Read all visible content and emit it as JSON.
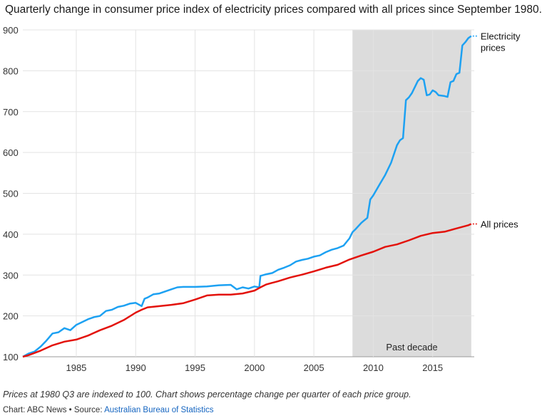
{
  "title": "Quarterly change in consumer price index of electricity prices compared with all prices since September 1980.",
  "footnote": "Prices at 1980 Q3 are indexed to 100. Chart shows percentage change per quarter of each price group.",
  "credit": {
    "prefix": "Chart: ABC News • Source: ",
    "source": "Australian Bureau of Statistics"
  },
  "chart_data": {
    "type": "line",
    "title": "Quarterly change in consumer price index of electricity prices compared with all prices since September 1980.",
    "xlim": [
      1980.5,
      2018.5
    ],
    "ylim": [
      100,
      900
    ],
    "x_ticks": [
      1985,
      1990,
      1995,
      2000,
      2005,
      2010,
      2015
    ],
    "y_ticks": [
      100,
      200,
      300,
      400,
      500,
      600,
      700,
      800,
      900
    ],
    "grid": true,
    "legend": "inline labels at line ends",
    "shaded_region": {
      "from": 2008.25,
      "to": 2018.25,
      "label": "Past decade",
      "color": "#dcdcdc"
    },
    "series": [
      {
        "name": "Electricity prices",
        "label_lines": [
          "Electricity",
          "prices"
        ],
        "color": "#1da1f2",
        "points": [
          [
            1980.5,
            100
          ],
          [
            1981,
            108
          ],
          [
            1981.5,
            113
          ],
          [
            1982,
            125
          ],
          [
            1982.5,
            140
          ],
          [
            1983,
            157
          ],
          [
            1983.5,
            160
          ],
          [
            1984,
            170
          ],
          [
            1984.5,
            165
          ],
          [
            1985,
            178
          ],
          [
            1985.5,
            185
          ],
          [
            1986,
            192
          ],
          [
            1986.5,
            197
          ],
          [
            1987,
            200
          ],
          [
            1987.5,
            212
          ],
          [
            1988,
            215
          ],
          [
            1988.5,
            222
          ],
          [
            1989,
            225
          ],
          [
            1989.5,
            230
          ],
          [
            1990,
            232
          ],
          [
            1990.5,
            224
          ],
          [
            1990.75,
            242
          ],
          [
            1991,
            245
          ],
          [
            1991.5,
            253
          ],
          [
            1992,
            255
          ],
          [
            1992.5,
            260
          ],
          [
            1993,
            265
          ],
          [
            1993.5,
            270
          ],
          [
            1994,
            271
          ],
          [
            1995,
            271
          ],
          [
            1996,
            272
          ],
          [
            1997,
            275
          ],
          [
            1998,
            276
          ],
          [
            1998.5,
            265
          ],
          [
            1999,
            270
          ],
          [
            1999.5,
            267
          ],
          [
            2000,
            272
          ],
          [
            2000.4,
            270
          ],
          [
            2000.5,
            298
          ],
          [
            2001,
            302
          ],
          [
            2001.5,
            305
          ],
          [
            2002,
            313
          ],
          [
            2002.5,
            318
          ],
          [
            2003,
            324
          ],
          [
            2003.5,
            333
          ],
          [
            2004,
            337
          ],
          [
            2004.5,
            340
          ],
          [
            2005,
            345
          ],
          [
            2005.5,
            348
          ],
          [
            2006,
            356
          ],
          [
            2006.5,
            362
          ],
          [
            2007,
            366
          ],
          [
            2007.5,
            372
          ],
          [
            2008,
            390
          ],
          [
            2008.25,
            405
          ],
          [
            2008.5,
            412
          ],
          [
            2009,
            428
          ],
          [
            2009.5,
            440
          ],
          [
            2009.75,
            485
          ],
          [
            2010,
            495
          ],
          [
            2010.5,
            520
          ],
          [
            2011,
            545
          ],
          [
            2011.5,
            575
          ],
          [
            2012,
            618
          ],
          [
            2012.25,
            630
          ],
          [
            2012.5,
            635
          ],
          [
            2012.75,
            728
          ],
          [
            2013,
            735
          ],
          [
            2013.25,
            745
          ],
          [
            2013.5,
            760
          ],
          [
            2013.75,
            775
          ],
          [
            2014,
            782
          ],
          [
            2014.25,
            778
          ],
          [
            2014.5,
            740
          ],
          [
            2014.75,
            742
          ],
          [
            2015,
            752
          ],
          [
            2015.25,
            748
          ],
          [
            2015.5,
            740
          ],
          [
            2016,
            738
          ],
          [
            2016.25,
            736
          ],
          [
            2016.5,
            772
          ],
          [
            2016.75,
            775
          ],
          [
            2017,
            792
          ],
          [
            2017.25,
            795
          ],
          [
            2017.5,
            862
          ],
          [
            2017.75,
            870
          ],
          [
            2018,
            880
          ],
          [
            2018.25,
            885
          ]
        ]
      },
      {
        "name": "All prices",
        "label_lines": [
          "All prices"
        ],
        "color": "#e3120b",
        "points": [
          [
            1980.5,
            100
          ],
          [
            1981,
            104
          ],
          [
            1982,
            115
          ],
          [
            1983,
            128
          ],
          [
            1984,
            137
          ],
          [
            1985,
            142
          ],
          [
            1986,
            152
          ],
          [
            1987,
            165
          ],
          [
            1988,
            176
          ],
          [
            1989,
            190
          ],
          [
            1990,
            208
          ],
          [
            1990.5,
            215
          ],
          [
            1991,
            221
          ],
          [
            1992,
            224
          ],
          [
            1993,
            227
          ],
          [
            1994,
            231
          ],
          [
            1995,
            240
          ],
          [
            1996,
            250
          ],
          [
            1997,
            252
          ],
          [
            1998,
            252
          ],
          [
            1999,
            255
          ],
          [
            2000,
            262
          ],
          [
            2000.5,
            270
          ],
          [
            2001,
            277
          ],
          [
            2002,
            285
          ],
          [
            2003,
            294
          ],
          [
            2004,
            301
          ],
          [
            2005,
            309
          ],
          [
            2006,
            318
          ],
          [
            2007,
            325
          ],
          [
            2008,
            338
          ],
          [
            2009,
            348
          ],
          [
            2010,
            357
          ],
          [
            2011,
            369
          ],
          [
            2012,
            375
          ],
          [
            2013,
            385
          ],
          [
            2014,
            396
          ],
          [
            2015,
            403
          ],
          [
            2016,
            406
          ],
          [
            2017,
            414
          ],
          [
            2018,
            422
          ],
          [
            2018.25,
            425
          ]
        ]
      }
    ]
  }
}
